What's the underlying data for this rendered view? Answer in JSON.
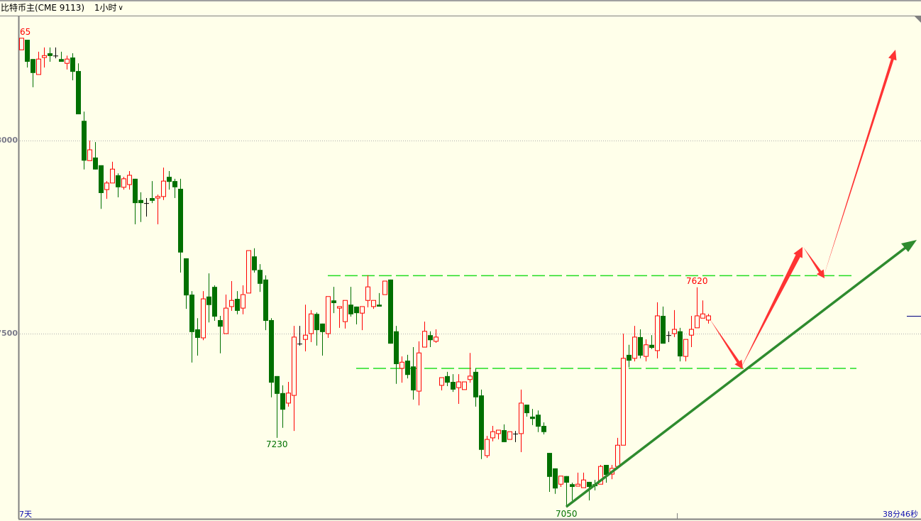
{
  "header": {
    "title": "比特币主(CME 9113)",
    "period": "1小时",
    "period_icon": "chevron-down-icon"
  },
  "footer": {
    "range_label": "7天",
    "countdown": "38分46秒"
  },
  "colors": {
    "up": "#ff0000",
    "down": "#007000",
    "doji": "#000000",
    "level_line": "#22dd22",
    "trend_arrow": "#2e8b2e",
    "projection_arrow": "#ff3333",
    "background": "#ffffea"
  },
  "chart_data": {
    "type": "candlestick",
    "ylim": [
      7035,
      8290
    ],
    "yticks": [
      {
        "value": 8000,
        "label": "8000"
      },
      {
        "value": 7500,
        "label": "7500"
      }
    ],
    "grid": "dotted horizontal at ticks",
    "candles_ohlc": [
      [
        8235,
        8265,
        8235,
        8265
      ],
      [
        8261,
        8261,
        8189,
        8204
      ],
      [
        8211,
        8211,
        8138,
        8175
      ],
      [
        8171,
        8230,
        8171,
        8211
      ],
      [
        8215,
        8241,
        8189,
        8220
      ],
      [
        8226,
        8241,
        8204,
        8219
      ],
      [
        8220,
        8241,
        8213,
        8220
      ],
      [
        8211,
        8230,
        8204,
        8204
      ],
      [
        8200,
        8220,
        8184,
        8211
      ],
      [
        8215,
        8226,
        8156,
        8178
      ],
      [
        8180,
        8200,
        8068,
        8068
      ],
      [
        8051,
        8075,
        7925,
        7948
      ],
      [
        7948,
        8000,
        7948,
        7976
      ],
      [
        7956,
        7996,
        7925,
        7925
      ],
      [
        7936,
        7936,
        7823,
        7864
      ],
      [
        7873,
        7895,
        7849,
        7890
      ],
      [
        7890,
        7945,
        7890,
        7926
      ],
      [
        7910,
        7915,
        7853,
        7879
      ],
      [
        7879,
        7906,
        7873,
        7901
      ],
      [
        7886,
        7921,
        7873,
        7910
      ],
      [
        7901,
        7901,
        7783,
        7838
      ],
      [
        7846,
        7866,
        7789,
        7838
      ],
      [
        7838,
        7851,
        7803,
        7838
      ],
      [
        7851,
        7895,
        7838,
        7844
      ],
      [
        7851,
        7860,
        7783,
        7855
      ],
      [
        7855,
        7930,
        7846,
        7895
      ],
      [
        7906,
        7921,
        7873,
        7893
      ],
      [
        7895,
        7901,
        7851,
        7879
      ],
      [
        7875,
        7901,
        7658,
        7710
      ],
      [
        7695,
        7695,
        7564,
        7599
      ],
      [
        7601,
        7610,
        7425,
        7504
      ],
      [
        7511,
        7540,
        7443,
        7489
      ],
      [
        7489,
        7610,
        7483,
        7590
      ],
      [
        7596,
        7656,
        7529,
        7574
      ],
      [
        7621,
        7625,
        7533,
        7544
      ],
      [
        7535,
        7546,
        7449,
        7518
      ],
      [
        7500,
        7601,
        7500,
        7566
      ],
      [
        7570,
        7636,
        7559,
        7586
      ],
      [
        7590,
        7610,
        7550,
        7559
      ],
      [
        7566,
        7625,
        7550,
        7601
      ],
      [
        7605,
        7715,
        7605,
        7715
      ],
      [
        7700,
        7721,
        7658,
        7664
      ],
      [
        7665,
        7680,
        7608,
        7629
      ],
      [
        7640,
        7651,
        7509,
        7533
      ],
      [
        7535,
        7540,
        7335,
        7373
      ],
      [
        7390,
        7390,
        7230,
        7344
      ],
      [
        7346,
        7366,
        7256,
        7303
      ],
      [
        7320,
        7375,
        7311,
        7346
      ],
      [
        7340,
        7520,
        7248,
        7491
      ],
      [
        7474,
        7520,
        7469,
        7474
      ],
      [
        7485,
        7575,
        7454,
        7496
      ],
      [
        7500,
        7561,
        7478,
        7551
      ],
      [
        7551,
        7555,
        7469,
        7509
      ],
      [
        7526,
        7526,
        7443,
        7504
      ],
      [
        7500,
        7596,
        7489,
        7596
      ],
      [
        7586,
        7621,
        7553,
        7579
      ],
      [
        7566,
        7570,
        7515,
        7570
      ],
      [
        7531,
        7586,
        7513,
        7586
      ],
      [
        7575,
        7621,
        7544,
        7550
      ],
      [
        7570,
        7570,
        7524,
        7553
      ],
      [
        7553,
        7570,
        7509,
        7570
      ],
      [
        7586,
        7651,
        7568,
        7621
      ],
      [
        7570,
        7586,
        7564,
        7586
      ],
      [
        7575,
        7605,
        7570,
        7570
      ],
      [
        7601,
        7636,
        7601,
        7636
      ],
      [
        7640,
        7640,
        7474,
        7474
      ],
      [
        7506,
        7520,
        7370,
        7421
      ],
      [
        7410,
        7441,
        7373,
        7426
      ],
      [
        7430,
        7445,
        7384,
        7393
      ],
      [
        7415,
        7465,
        7329,
        7353
      ],
      [
        7351,
        7480,
        7314,
        7450
      ],
      [
        7465,
        7531,
        7465,
        7506
      ],
      [
        7496,
        7506,
        7465,
        7483
      ],
      [
        7480,
        7511,
        7476,
        7491
      ],
      [
        7366,
        7386,
        7353,
        7386
      ],
      [
        7390,
        7401,
        7364,
        7373
      ],
      [
        7375,
        7395,
        7349,
        7355
      ],
      [
        7360,
        7395,
        7318,
        7375
      ],
      [
        7355,
        7375,
        7355,
        7375
      ],
      [
        7381,
        7450,
        7373,
        7390
      ],
      [
        7401,
        7410,
        7311,
        7335
      ],
      [
        7340,
        7355,
        7175,
        7199
      ],
      [
        7184,
        7235,
        7178,
        7226
      ],
      [
        7230,
        7261,
        7221,
        7246
      ],
      [
        7241,
        7250,
        7226,
        7250
      ],
      [
        7250,
        7265,
        7219,
        7219
      ],
      [
        7226,
        7246,
        7226,
        7246
      ],
      [
        7241,
        7248,
        7219,
        7241
      ],
      [
        7241,
        7355,
        7193,
        7320
      ],
      [
        7316,
        7316,
        7285,
        7294
      ],
      [
        7285,
        7305,
        7263,
        7279
      ],
      [
        7290,
        7301,
        7245,
        7259
      ],
      [
        7261,
        7270,
        7239,
        7245
      ],
      [
        7191,
        7191,
        7090,
        7129
      ],
      [
        7151,
        7151,
        7085,
        7099
      ],
      [
        7110,
        7131,
        7103,
        7131
      ],
      [
        7131,
        7131,
        7050,
        7114
      ],
      [
        7110,
        7114,
        7068,
        7103
      ],
      [
        7105,
        7140,
        7105,
        7110
      ],
      [
        7101,
        7140,
        7101,
        7121
      ],
      [
        7116,
        7116,
        7068,
        7103
      ],
      [
        7110,
        7121,
        7094,
        7105
      ],
      [
        7110,
        7160,
        7110,
        7156
      ],
      [
        7160,
        7160,
        7114,
        7134
      ],
      [
        7136,
        7160,
        7123,
        7151
      ],
      [
        7156,
        7230,
        7156,
        7211
      ],
      [
        7211,
        7500,
        7211,
        7436
      ],
      [
        7445,
        7471,
        7413,
        7430
      ],
      [
        7436,
        7520,
        7428,
        7491
      ],
      [
        7491,
        7511,
        7436,
        7443
      ],
      [
        7441,
        7485,
        7428,
        7471
      ],
      [
        7471,
        7496,
        7460,
        7463
      ],
      [
        7456,
        7581,
        7436,
        7546
      ],
      [
        7546,
        7570,
        7474,
        7474
      ],
      [
        7496,
        7506,
        7478,
        7496
      ],
      [
        7500,
        7561,
        7491,
        7511
      ],
      [
        7506,
        7515,
        7428,
        7441
      ],
      [
        7441,
        7485,
        7428,
        7485
      ],
      [
        7496,
        7546,
        7465,
        7511
      ],
      [
        7515,
        7620,
        7515,
        7546
      ],
      [
        7540,
        7586,
        7540,
        7551
      ],
      [
        7535,
        7551,
        7526,
        7546
      ]
    ],
    "annotations": [
      {
        "text": "65",
        "index": 0,
        "pos": "above",
        "color": "#ff0000"
      },
      {
        "text": "7230",
        "index": 45,
        "pos": "below",
        "color": "#007000"
      },
      {
        "text": "7050",
        "index": 96,
        "pos": "below",
        "color": "#007000"
      },
      {
        "text": "7620",
        "index": 119,
        "pos": "above",
        "color": "#ff0000"
      }
    ],
    "levels": [
      7650,
      7410
    ]
  }
}
